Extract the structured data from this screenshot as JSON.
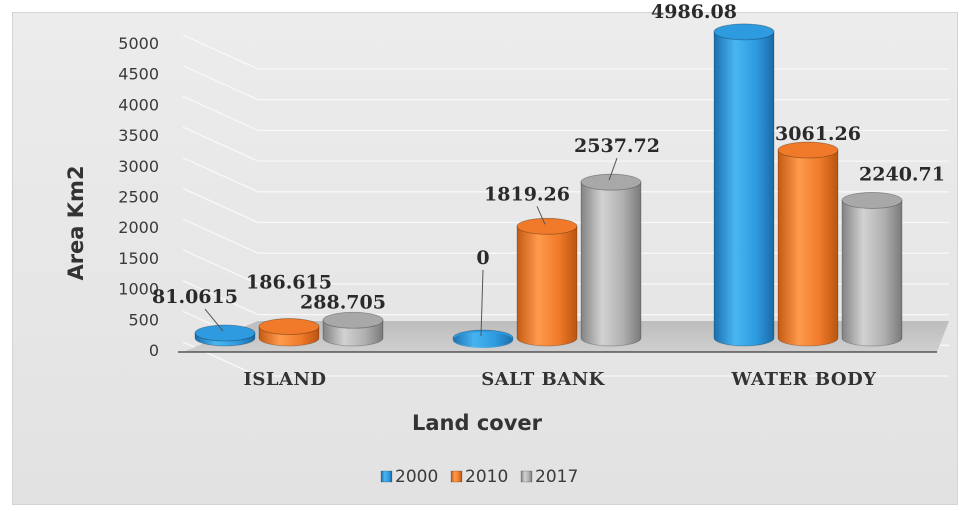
{
  "chart_data": {
    "type": "bar",
    "style": "3d-cylinder",
    "categories": [
      "ISLAND",
      "SALT BANK",
      "WATER BODY"
    ],
    "series": [
      {
        "name": "2000",
        "values": [
          81.0615,
          0,
          4986.08
        ],
        "labels": [
          "81.0615",
          "0",
          "4986.08"
        ],
        "color": "#2e9be0"
      },
      {
        "name": "2010",
        "values": [
          186.615,
          1819.26,
          3061.26
        ],
        "labels": [
          "186.615",
          "1819.26",
          "3061.26"
        ],
        "color": "#f07a2a"
      },
      {
        "name": "2017",
        "values": [
          288.705,
          2537.72,
          2240.71
        ],
        "labels": [
          "288.705",
          "2537.72",
          "2240.71"
        ],
        "color": "#a8a8a8"
      }
    ],
    "xlabel": "Land cover",
    "ylabel": "Area Km2",
    "ylim": [
      0,
      5000
    ],
    "yticks": [
      "0",
      "500",
      "1000",
      "1500",
      "2000",
      "2500",
      "3000",
      "3500",
      "4000",
      "4500",
      "5000"
    ],
    "grid": true,
    "legend_position": "bottom"
  }
}
